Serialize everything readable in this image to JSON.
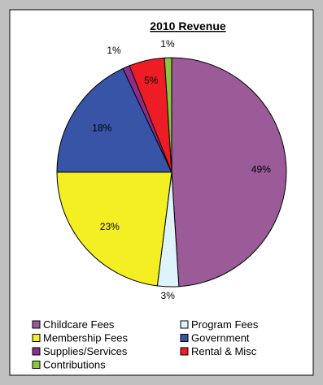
{
  "chart_data": {
    "type": "pie",
    "title": "2010 Revenue",
    "categories": [
      "Childcare Fees",
      "Program Fees",
      "Membership Fees",
      "Government",
      "Supplies/Services",
      "Rental & Misc",
      "Contributions"
    ],
    "values": [
      49,
      3,
      23,
      18,
      1,
      5,
      1
    ],
    "data_labels": [
      "49%",
      "3%",
      "23%",
      "18%",
      "1%",
      "5%",
      "1%"
    ],
    "colors": [
      "#9b5a98",
      "#dff3fb",
      "#f4ef22",
      "#3854a6",
      "#8c2f8c",
      "#ee1c25",
      "#8cc63f"
    ],
    "legend": {
      "placement": "bottom",
      "items": [
        "Childcare Fees",
        "Program Fees",
        "Membership Fees",
        "Government",
        "Supplies/Services",
        "Rental & Misc",
        "Contributions"
      ]
    }
  }
}
